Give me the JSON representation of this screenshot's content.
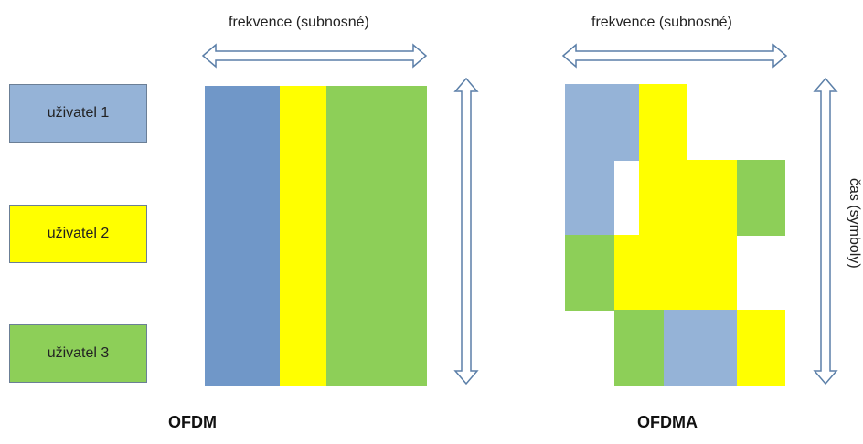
{
  "colors": {
    "user1_legend": "#95B3D7",
    "user1_ofdm": "#7097C8",
    "user2": "#FFFF00",
    "user3": "#92D050",
    "arrow": "#5b7fa8"
  },
  "legend": [
    {
      "label": "uživatel 1"
    },
    {
      "label": "uživatel 2"
    },
    {
      "label": "uživatel 3"
    }
  ],
  "ofdm": {
    "freq_label": "frekvence (subnosné)",
    "title": "OFDM"
  },
  "ofdma": {
    "freq_label": "frekvence (subnosné)",
    "time_label": "čas (symboly)",
    "title": "OFDMA"
  }
}
